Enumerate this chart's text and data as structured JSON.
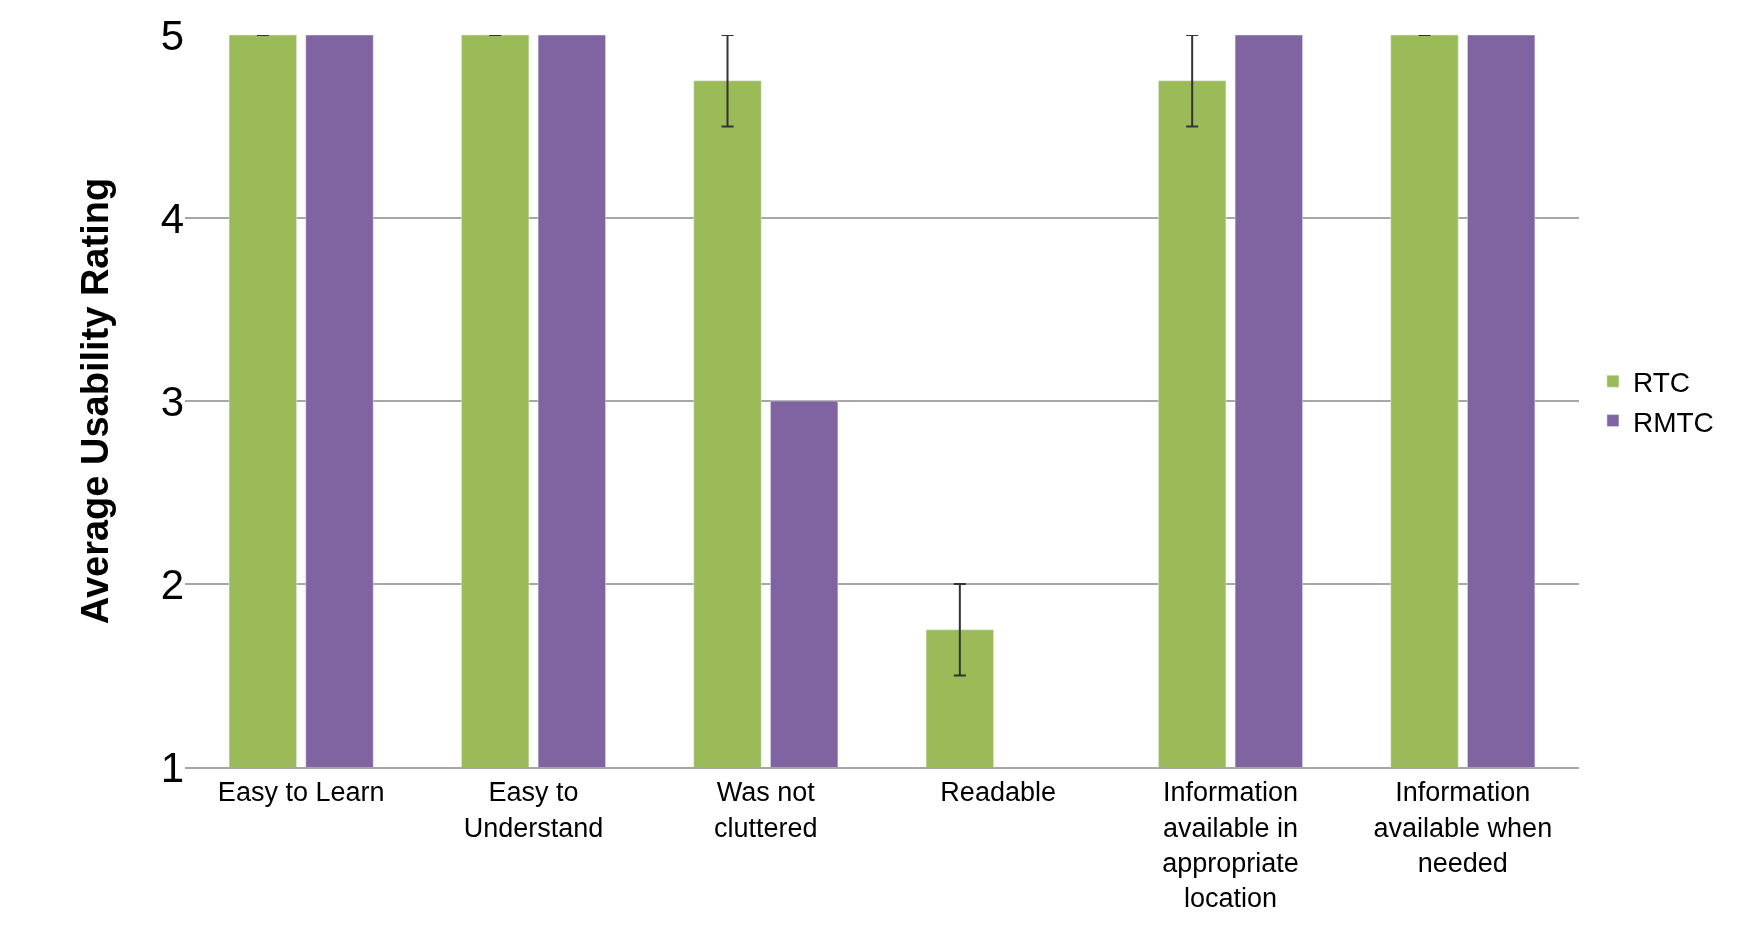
{
  "chart_data": {
    "type": "bar",
    "ylabel": "Average Usability Rating",
    "categories": [
      "Easy to Learn",
      "Easy to Understand",
      "Was not cluttered",
      "Readable",
      "Information available in appropriate location",
      "Information available when needed"
    ],
    "series": [
      {
        "name": "RTC",
        "color": "#9bbb59",
        "values": [
          5,
          5,
          4.75,
          1.75,
          4.75,
          5
        ],
        "errors": [
          0,
          0,
          0.25,
          0.25,
          0.25,
          0
        ]
      },
      {
        "name": "RMTC",
        "color": "#8064a2",
        "values": [
          5,
          5,
          3,
          null,
          5,
          5
        ]
      }
    ],
    "ylim": [
      1,
      5
    ],
    "yticks": [
      1,
      2,
      3,
      4,
      5
    ],
    "grid": "y",
    "legend": "right"
  }
}
